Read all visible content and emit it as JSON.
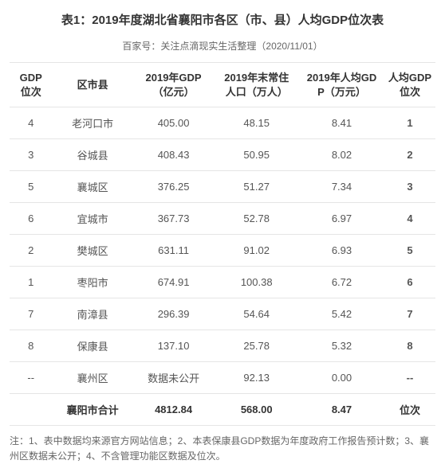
{
  "title": "表1：2019年度湖北省襄阳市各区（市、县）人均GDP位次表",
  "subtitle": "百家号：关注点滴现实生活整理（2020/11/01）",
  "columns": [
    "GDP\n位次",
    "区市县",
    "2019年GDP\n（亿元）",
    "2019年末常住\n人口（万人）",
    "2019年人均GD\nP（万元）",
    "人均GDP\n位次"
  ],
  "rows": [
    [
      "4",
      "老河口市",
      "405.00",
      "48.15",
      "8.41",
      "1"
    ],
    [
      "3",
      "谷城县",
      "408.43",
      "50.95",
      "8.02",
      "2"
    ],
    [
      "5",
      "襄城区",
      "376.25",
      "51.27",
      "7.34",
      "3"
    ],
    [
      "6",
      "宜城市",
      "367.73",
      "52.78",
      "6.97",
      "4"
    ],
    [
      "2",
      "樊城区",
      "631.11",
      "91.02",
      "6.93",
      "5"
    ],
    [
      "1",
      "枣阳市",
      "674.91",
      "100.38",
      "6.72",
      "6"
    ],
    [
      "7",
      "南漳县",
      "296.39",
      "54.64",
      "5.42",
      "7"
    ],
    [
      "8",
      "保康县",
      "137.10",
      "25.78",
      "5.32",
      "8"
    ],
    [
      "--",
      "襄州区",
      "数据未公开",
      "92.13",
      "0.00",
      "--"
    ]
  ],
  "total": [
    "",
    "襄阳市合计",
    "4812.84",
    "568.00",
    "8.47",
    "位次"
  ],
  "footnote": "注：1、表中数据均来源官方网站信息；2、本表保康县GDP数据为年度政府工作报告预计数；3、襄州区数据未公开；4、不含管理功能区数据及位次。",
  "colors": {
    "text": "#333333",
    "muted": "#666666",
    "border": "#e5e5e5",
    "bg": "#ffffff"
  }
}
